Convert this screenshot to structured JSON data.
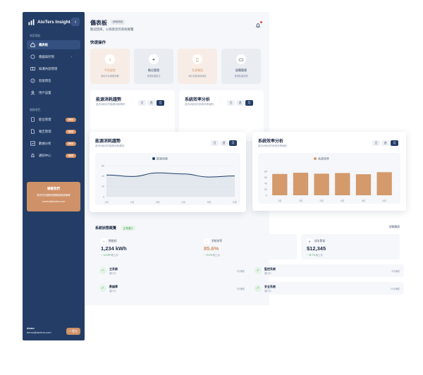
{
  "sidebar": {
    "brand": "AioTers Insight",
    "collapse_icon": "‹",
    "section_common": "常用導航",
    "section_service": "服務項目",
    "items": [
      {
        "label": "儀表板",
        "icon": "home-icon"
      },
      {
        "label": "儀器與控制",
        "icon": "monitor-icon"
      },
      {
        "label": "知識內容管理",
        "icon": "book-icon"
      },
      {
        "label": "智能問答",
        "icon": "help-icon"
      },
      {
        "label": "用戶設置",
        "icon": "user-icon"
      }
    ],
    "service_items": [
      {
        "label": "能位管理",
        "icon": "device-icon",
        "badge": "NEW"
      },
      {
        "label": "報告管理",
        "icon": "report-icon",
        "badge": "NEW"
      },
      {
        "label": "數據分析",
        "icon": "chart-icon",
        "badge": "NEW"
      },
      {
        "label": "通知中心",
        "icon": "bell-icon",
        "badge": "NEW"
      }
    ],
    "promo": {
      "title": "聯繫我們",
      "text": "若有任何疑問或需要協助請聯繫",
      "email": "service@aioters.com"
    },
    "user": {
      "name": "demo",
      "email": "demo@aioters.com"
    },
    "logout_label": "登出"
  },
  "header": {
    "title": "儀表板",
    "tag": "即時資訊",
    "subtitle": "歡迎回來，以探索您的系統概覽"
  },
  "quick_actions": {
    "title": "快速操作",
    "cards": [
      {
        "label": "平台設定",
        "desc": "新增平台觀察設備",
        "icon": "‹",
        "style": "light"
      },
      {
        "label": "點位管理",
        "desc": "管理各類點位",
        "icon": "+",
        "style": "dark"
      },
      {
        "label": "生成報告",
        "desc": "導出系統使用報告",
        "icon": "▯",
        "style": "light"
      },
      {
        "label": "設備管理",
        "desc": "管理各類設備",
        "icon": "▭",
        "style": "dark"
      }
    ]
  },
  "mini_cards": [
    {
      "title": "能源消耗趨勢",
      "sub": "過去6個月的能源消耗情況",
      "segments": [
        "日",
        "週",
        "月"
      ],
      "active": 2
    },
    {
      "title": "系統效率分析",
      "sub": "過去6個月的系統效率變化",
      "segments": [
        "日",
        "週",
        "月"
      ],
      "active": 2
    }
  ],
  "energy_card": {
    "title": "能源消耗趨勢",
    "sub": "過去6個月的能源消耗情況",
    "segments": [
      "日",
      "週",
      "月"
    ],
    "active": 2
  },
  "efficiency_card": {
    "title": "系統效率分析",
    "sub": "過去6個月的系統效率變化",
    "segments": [
      "日",
      "週",
      "月"
    ],
    "active": 2
  },
  "chart_data": [
    {
      "type": "line",
      "title": "能源消耗趨勢",
      "legend": "能源消耗",
      "x": [
        "1月",
        "2月",
        "3月",
        "4月",
        "5月",
        "6月"
      ],
      "series": [
        {
          "name": "能源消耗",
          "values": [
            42,
            39,
            46,
            44,
            38,
            40
          ]
        }
      ],
      "yticks": [
        0,
        20,
        40,
        60
      ],
      "ylim": [
        0,
        60
      ],
      "color": "#1f3b66",
      "grid": true
    },
    {
      "type": "bar",
      "title": "系統效率分析",
      "legend": "系統效率",
      "categories": [
        "1月",
        "2月",
        "3月",
        "4月",
        "5月",
        "6月"
      ],
      "series": [
        {
          "name": "系統效率",
          "values": [
            72,
            76,
            73,
            75,
            71,
            78
          ]
        }
      ],
      "yticks": [
        0,
        20,
        40,
        60,
        80
      ],
      "ylim": [
        0,
        100
      ],
      "color": "#d49a6c",
      "grid": true
    }
  ],
  "status": {
    "title": "系統狀態概覽",
    "badge": "正常運行",
    "detail_link": "詳細資訊",
    "metrics": [
      {
        "label": "總能耗",
        "icon": "✧",
        "value": "1,234 kWh",
        "trend": "+12.5%",
        "trend_text": "較上月",
        "accent": false
      },
      {
        "label": "系統效率",
        "icon": "◔",
        "value": "85.6%",
        "trend": "+3.2%",
        "trend_text": "較上月",
        "accent": true
      },
      {
        "label": "成本節省",
        "icon": "⊛",
        "value": "$12,345",
        "trend": "+8.7%",
        "trend_text": "較上月",
        "accent": false
      }
    ],
    "services": [
      {
        "name": "主系統",
        "state": "運行中",
        "time": "2分鐘前"
      },
      {
        "name": "監控系統",
        "state": "運行中",
        "time": "5分鐘前"
      },
      {
        "name": "數據庫",
        "state": "運行中",
        "time": "3分鐘前"
      },
      {
        "name": "安全系統",
        "state": "運行中",
        "time": "10分鐘前"
      }
    ]
  }
}
